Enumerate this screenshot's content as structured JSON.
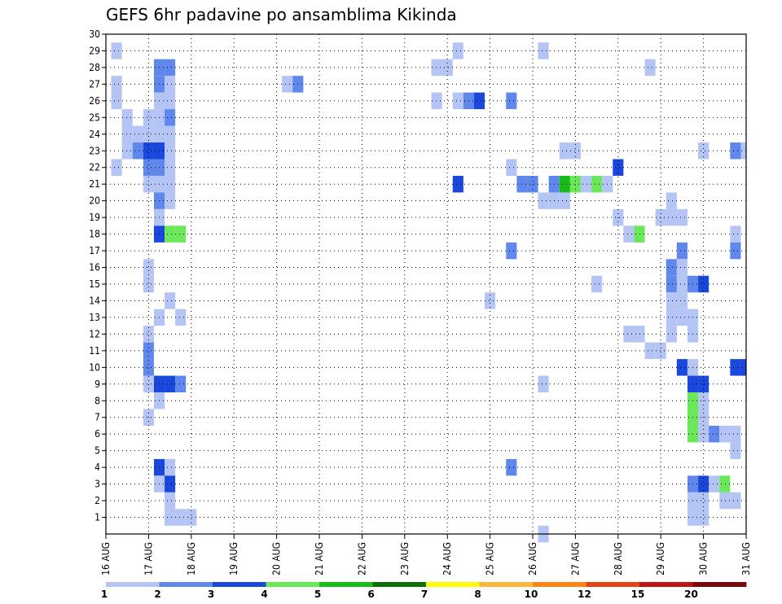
{
  "chart_data": {
    "type": "heatmap",
    "title": "GEFS 6hr padavine po ansamblima Kikinda",
    "xlabel": "",
    "ylabel": "",
    "x_ticks": [
      "16 AUG",
      "17 AUG",
      "18 AUG",
      "19 AUG",
      "20 AUG",
      "21 AUG",
      "22 AUG",
      "23 AUG",
      "24 AUG",
      "25 AUG",
      "26 AUG",
      "27 AUG",
      "28 AUG",
      "29 AUG",
      "30 AUG",
      "31 AUG"
    ],
    "y_ticks": [
      "1",
      "2",
      "3",
      "4",
      "5",
      "6",
      "7",
      "8",
      "9",
      "10",
      "11",
      "12",
      "13",
      "14",
      "15",
      "16",
      "17",
      "18",
      "19",
      "20",
      "21",
      "22",
      "23",
      "24",
      "25",
      "26",
      "27",
      "28",
      "29",
      "30"
    ],
    "xlim_steps": [
      0,
      60
    ],
    "ylim_members": [
      0,
      30
    ],
    "grid": true,
    "colorbar": {
      "labels": [
        "1",
        "2",
        "3",
        "4",
        "5",
        "6",
        "7",
        "8",
        "10",
        "12",
        "15",
        "20"
      ],
      "colors": [
        "#b4c4f4",
        "#6088ec",
        "#1a48dc",
        "#6ae85a",
        "#18bc18",
        "#0a7008",
        "#fcfc0c",
        "#fcb43c",
        "#fc8414",
        "#e44414",
        "#c01414",
        "#7a0a0a"
      ]
    },
    "cells": [
      [
        1,
        29,
        1
      ],
      [
        1,
        27,
        1
      ],
      [
        1,
        26,
        1
      ],
      [
        1,
        22,
        1
      ],
      [
        2,
        25,
        1
      ],
      [
        2,
        24,
        1
      ],
      [
        2,
        23,
        1
      ],
      [
        3,
        24,
        1
      ],
      [
        3,
        23,
        2
      ],
      [
        4,
        25,
        1
      ],
      [
        4,
        24,
        1
      ],
      [
        4,
        23,
        3
      ],
      [
        4,
        22,
        2
      ],
      [
        4,
        21,
        1
      ],
      [
        4,
        16,
        1
      ],
      [
        4,
        15,
        1
      ],
      [
        4,
        12,
        1
      ],
      [
        4,
        11,
        2
      ],
      [
        4,
        10,
        2
      ],
      [
        4,
        9,
        1
      ],
      [
        4,
        7,
        1
      ],
      [
        5,
        28,
        2
      ],
      [
        5,
        27,
        2
      ],
      [
        5,
        26,
        1
      ],
      [
        5,
        25,
        1
      ],
      [
        5,
        24,
        1
      ],
      [
        5,
        23,
        3
      ],
      [
        5,
        22,
        2
      ],
      [
        5,
        21,
        1
      ],
      [
        5,
        20,
        2
      ],
      [
        5,
        19,
        1
      ],
      [
        5,
        18,
        3
      ],
      [
        5,
        13,
        1
      ],
      [
        5,
        9,
        3
      ],
      [
        5,
        8,
        1
      ],
      [
        5,
        4,
        3
      ],
      [
        5,
        3,
        1
      ],
      [
        6,
        28,
        2
      ],
      [
        6,
        27,
        1
      ],
      [
        6,
        26,
        1
      ],
      [
        6,
        25,
        2
      ],
      [
        6,
        24,
        1
      ],
      [
        6,
        23,
        1
      ],
      [
        6,
        22,
        1
      ],
      [
        6,
        21,
        1
      ],
      [
        6,
        20,
        1
      ],
      [
        6,
        18,
        4
      ],
      [
        6,
        14,
        1
      ],
      [
        6,
        9,
        3
      ],
      [
        6,
        4,
        1
      ],
      [
        6,
        3,
        3
      ],
      [
        6,
        2,
        1
      ],
      [
        6,
        1,
        1
      ],
      [
        7,
        18,
        4
      ],
      [
        7,
        13,
        1
      ],
      [
        7,
        9,
        2
      ],
      [
        7,
        1,
        1
      ],
      [
        8,
        1,
        1
      ],
      [
        17,
        27,
        1
      ],
      [
        18,
        27,
        2
      ],
      [
        31,
        28,
        1
      ],
      [
        31,
        26,
        1
      ],
      [
        32,
        28,
        1
      ],
      [
        33,
        29,
        1
      ],
      [
        33,
        26,
        1
      ],
      [
        33,
        21,
        3
      ],
      [
        34,
        26,
        2
      ],
      [
        35,
        26,
        3
      ],
      [
        36,
        14,
        1
      ],
      [
        38,
        26,
        2
      ],
      [
        38,
        22,
        1
      ],
      [
        38,
        17,
        2
      ],
      [
        38,
        4,
        2
      ],
      [
        39,
        21,
        2
      ],
      [
        40,
        21,
        2
      ],
      [
        41,
        29,
        1
      ],
      [
        41,
        20,
        1
      ],
      [
        41,
        9,
        1
      ],
      [
        41,
        0,
        1
      ],
      [
        42,
        21,
        2
      ],
      [
        42,
        20,
        1
      ],
      [
        43,
        23,
        1
      ],
      [
        43,
        20,
        1
      ],
      [
        43,
        21,
        5
      ],
      [
        44,
        23,
        1
      ],
      [
        44,
        21,
        4
      ],
      [
        45,
        21,
        1
      ],
      [
        46,
        15,
        1
      ],
      [
        46,
        21,
        4
      ],
      [
        47,
        21,
        1
      ],
      [
        48,
        19,
        1
      ],
      [
        48,
        22,
        3
      ],
      [
        49,
        18,
        1
      ],
      [
        49,
        12,
        1
      ],
      [
        50,
        18,
        4
      ],
      [
        50,
        12,
        1
      ],
      [
        51,
        28,
        1
      ],
      [
        51,
        11,
        1
      ],
      [
        52,
        19,
        1
      ],
      [
        52,
        11,
        1
      ],
      [
        53,
        20,
        1
      ],
      [
        53,
        19,
        1
      ],
      [
        53,
        16,
        2
      ],
      [
        53,
        15,
        2
      ],
      [
        53,
        14,
        1
      ],
      [
        53,
        13,
        1
      ],
      [
        53,
        12,
        1
      ],
      [
        54,
        19,
        1
      ],
      [
        54,
        17,
        2
      ],
      [
        54,
        16,
        1
      ],
      [
        54,
        15,
        1
      ],
      [
        54,
        14,
        1
      ],
      [
        54,
        13,
        1
      ],
      [
        54,
        10,
        3
      ],
      [
        55,
        15,
        2
      ],
      [
        55,
        13,
        1
      ],
      [
        55,
        12,
        1
      ],
      [
        55,
        10,
        1
      ],
      [
        55,
        9,
        3
      ],
      [
        55,
        8,
        4
      ],
      [
        55,
        7,
        4
      ],
      [
        55,
        6,
        4
      ],
      [
        55,
        3,
        2
      ],
      [
        55,
        2,
        1
      ],
      [
        55,
        1,
        1
      ],
      [
        56,
        23,
        1
      ],
      [
        56,
        15,
        3
      ],
      [
        56,
        9,
        3
      ],
      [
        56,
        8,
        1
      ],
      [
        56,
        7,
        1
      ],
      [
        56,
        6,
        1
      ],
      [
        56,
        3,
        3
      ],
      [
        56,
        2,
        1
      ],
      [
        56,
        1,
        1
      ],
      [
        57,
        6,
        2
      ],
      [
        57,
        3,
        1
      ],
      [
        58,
        6,
        1
      ],
      [
        58,
        3,
        4
      ],
      [
        58,
        2,
        1
      ],
      [
        59,
        23,
        2
      ],
      [
        59,
        18,
        1
      ],
      [
        59,
        17,
        2
      ],
      [
        59,
        10,
        3
      ],
      [
        59,
        6,
        1
      ],
      [
        59,
        5,
        1
      ],
      [
        59,
        2,
        1
      ],
      [
        60,
        23,
        1
      ],
      [
        60,
        10,
        3
      ]
    ]
  }
}
